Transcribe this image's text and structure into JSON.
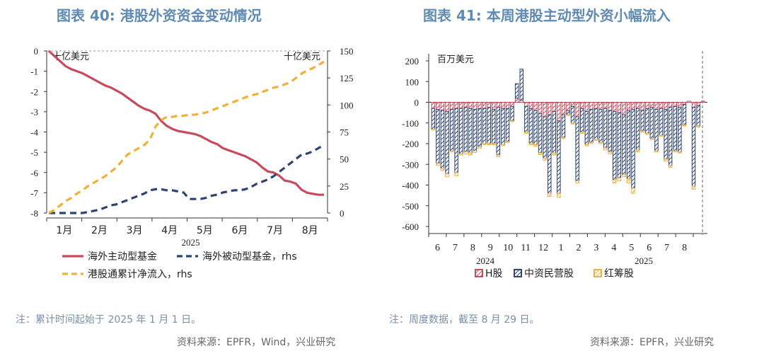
{
  "left": {
    "title": "图表 40: 港股外资资金变动情况",
    "note": "注：累计时间起始于 2025 年 1 月 1 日。",
    "source": "资料来源：EPFR，Wind，兴业研究",
    "chart_data": {
      "type": "line",
      "left_unit": "十亿美元",
      "right_unit": "十亿美元",
      "year_label": "2025",
      "month_labels": [
        "1月",
        "2月",
        "3月",
        "4月",
        "5月",
        "6月",
        "7月",
        "8月"
      ],
      "ylim_left": [
        -8,
        0
      ],
      "ylim_right": [
        0,
        150
      ],
      "yticks_left": [
        "0",
        "-1",
        "-2",
        "-3",
        "-4",
        "-5",
        "-6",
        "-7",
        "-8"
      ],
      "yticks_right": [
        "150",
        "125",
        "100",
        "75",
        "50",
        "25",
        "0"
      ],
      "series": [
        {
          "name": "海外主动型基金",
          "axis": "left",
          "color": "#c84a5c",
          "dash": "",
          "values": [
            0,
            -0.25,
            -0.5,
            -0.75,
            -0.9,
            -1.0,
            -1.1,
            -1.25,
            -1.4,
            -1.55,
            -1.7,
            -1.8,
            -1.95,
            -2.1,
            -2.3,
            -2.5,
            -2.7,
            -2.85,
            -2.95,
            -3.1,
            -3.45,
            -3.7,
            -3.85,
            -3.95,
            -4.0,
            -4.05,
            -4.1,
            -4.2,
            -4.35,
            -4.5,
            -4.6,
            -4.8,
            -4.9,
            -5.0,
            -5.1,
            -5.2,
            -5.35,
            -5.5,
            -5.75,
            -5.95,
            -6.0,
            -6.15,
            -6.4,
            -6.45,
            -6.55,
            -6.85,
            -7.0,
            -7.05,
            -7.1,
            -7.1
          ]
        },
        {
          "name": "海外被动型基金，rhs",
          "axis": "right",
          "color": "#2f4470",
          "dash": "9,6",
          "values": [
            0,
            0,
            0,
            0,
            0,
            0,
            0,
            1,
            2,
            3,
            5,
            7,
            8,
            10,
            12,
            14,
            16,
            18,
            21,
            22,
            22,
            21,
            21,
            20,
            19,
            13,
            13,
            13,
            14,
            16,
            17,
            19,
            20,
            21,
            21,
            22,
            24,
            27,
            29,
            31,
            34,
            38,
            42,
            46,
            50,
            54,
            55,
            57,
            60,
            63
          ]
        },
        {
          "name": "港股通累计净流入，rhs",
          "axis": "right",
          "color": "#f0b13a",
          "dash": "9,6",
          "values": [
            0,
            3,
            7,
            11,
            14,
            18,
            21,
            25,
            28,
            31,
            34,
            38,
            42,
            48,
            54,
            57,
            60,
            63,
            68,
            80,
            86,
            89,
            89,
            90,
            90,
            91,
            91,
            92,
            93,
            95,
            97,
            99,
            101,
            103,
            105,
            107,
            109,
            110,
            112,
            114,
            116,
            117,
            119,
            121,
            125,
            129,
            132,
            134,
            137,
            140
          ]
        }
      ]
    }
  },
  "right": {
    "title": "图表 41: 本周港股主动型外资小幅流入",
    "note": "注：周度数据，截至 8 月 29 日。",
    "source": "资料来源：EPFR，兴业研究",
    "chart_data": {
      "type": "bar",
      "unit": "百万美元",
      "ylim": [
        -600,
        200
      ],
      "yticks": [
        "200",
        "100",
        "0",
        "-100",
        "-200",
        "-300",
        "-400",
        "-500",
        "-600"
      ],
      "month_labels": [
        "6",
        "7",
        "8",
        "9",
        "10",
        "11",
        "12",
        "1",
        "2",
        "3",
        "4",
        "5",
        "6",
        "7",
        "8"
      ],
      "year_labels": [
        "2024",
        "2025"
      ],
      "series": [
        {
          "name": "H股",
          "color": "#c84a5c",
          "values": [
            -30,
            -35,
            -40,
            -45,
            -35,
            -30,
            -30,
            -25,
            -30,
            -35,
            -30,
            -30,
            -25,
            -35,
            -25,
            -30,
            -30,
            -20,
            20,
            10,
            -20,
            -30,
            -40,
            -55,
            -70,
            -60,
            -45,
            -90,
            -60,
            -40,
            -20,
            -70,
            -30,
            -45,
            -35,
            -30,
            -35,
            -30,
            -40,
            -45,
            -50,
            -60,
            -40,
            -35,
            -30,
            -40,
            -30,
            -25,
            -35,
            -30,
            -35,
            -25,
            -20,
            -25,
            -10,
            5,
            -25,
            -15,
            5
          ]
        },
        {
          "name": "中资民营股",
          "color": "#2f4470",
          "values": [
            -100,
            -260,
            -280,
            -300,
            -200,
            -310,
            -220,
            -215,
            -215,
            -200,
            -185,
            -170,
            -175,
            -165,
            -230,
            -175,
            -160,
            -70,
            70,
            150,
            -125,
            -170,
            -165,
            -190,
            -200,
            -380,
            -200,
            -350,
            -110,
            -20,
            -80,
            -310,
            -115,
            -160,
            -160,
            -150,
            -160,
            -190,
            -200,
            -330,
            -315,
            -290,
            -330,
            -380,
            -200,
            -100,
            -120,
            -150,
            -200,
            -130,
            -240,
            -280,
            -215,
            -215,
            -100,
            0,
            -380,
            -100,
            0
          ]
        },
        {
          "name": "红筹股",
          "color": "#f0b13a",
          "values": [
            -5,
            -10,
            -10,
            -15,
            -5,
            -15,
            -5,
            -10,
            -10,
            -8,
            -8,
            -5,
            -5,
            -5,
            -8,
            -5,
            -5,
            -3,
            0,
            0,
            -5,
            -5,
            -8,
            -8,
            -10,
            -15,
            -10,
            -20,
            -5,
            -3,
            -5,
            -10,
            -5,
            -5,
            -5,
            -5,
            -5,
            -10,
            -10,
            -15,
            -15,
            -10,
            -20,
            -25,
            -10,
            -5,
            -5,
            -5,
            -5,
            -5,
            -10,
            -10,
            -5,
            -5,
            -5,
            0,
            -15,
            -5,
            0
          ]
        }
      ]
    }
  }
}
